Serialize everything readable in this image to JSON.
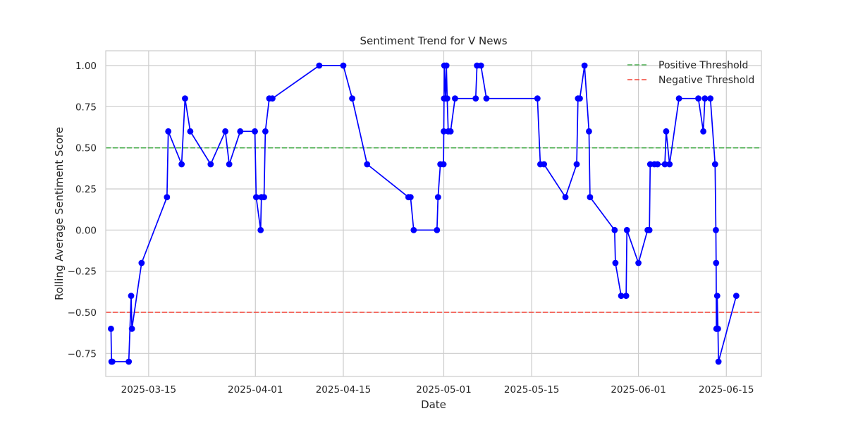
{
  "chart_data": {
    "type": "line",
    "title": "Sentiment Trend for V News",
    "xlabel": "Date",
    "ylabel": "Rolling Average Sentiment Score",
    "x_type": "date",
    "xlim": [
      "2025-03-08T04:00",
      "2025-06-20T14:00"
    ],
    "ylim": [
      -0.89,
      1.09
    ],
    "x_ticks": [
      "2025-03-15",
      "2025-04-01",
      "2025-04-15",
      "2025-05-01",
      "2025-05-15",
      "2025-06-01",
      "2025-06-15"
    ],
    "y_ticks": [
      1.0,
      0.75,
      0.5,
      0.25,
      0.0,
      -0.25,
      -0.5,
      -0.75
    ],
    "y_tick_labels": [
      "1.00",
      "0.75",
      "0.50",
      "0.25",
      "0.00",
      "−0.25",
      "−0.50",
      "−0.75"
    ],
    "grid": true,
    "legend_position": "top-right",
    "series": [
      {
        "color": "#0000ff",
        "marker": "circle",
        "points": [
          [
            "2025-03-09T00:00",
            -0.6
          ],
          [
            "2025-03-09T02:00",
            -0.8
          ],
          [
            "2025-03-09T05:00",
            -0.8
          ],
          [
            "2025-03-11T20:00",
            -0.8
          ],
          [
            "2025-03-12T05:00",
            -0.4
          ],
          [
            "2025-03-12T08:00",
            -0.6
          ],
          [
            "2025-03-13T21:00",
            -0.2
          ],
          [
            "2025-03-17T22:00",
            0.2
          ],
          [
            "2025-03-18T03:00",
            0.6
          ],
          [
            "2025-03-20T06:00",
            0.4
          ],
          [
            "2025-03-20T19:00",
            0.8
          ],
          [
            "2025-03-21T15:00",
            0.6
          ],
          [
            "2025-03-24T21:00",
            0.4
          ],
          [
            "2025-03-27T05:00",
            0.6
          ],
          [
            "2025-03-27T20:00",
            0.4
          ],
          [
            "2025-03-29T14:00",
            0.6
          ],
          [
            "2025-03-31T22:00",
            0.6
          ],
          [
            "2025-04-01T03:00",
            0.2
          ],
          [
            "2025-04-01T20:00",
            0.0
          ],
          [
            "2025-04-01T23:00",
            0.2
          ],
          [
            "2025-04-02T09:00",
            0.2
          ],
          [
            "2025-04-02T14:00",
            0.6
          ],
          [
            "2025-04-03T05:00",
            0.8
          ],
          [
            "2025-04-03T17:00",
            0.8
          ],
          [
            "2025-04-11T04:00",
            1.0
          ],
          [
            "2025-04-15T00:00",
            1.0
          ],
          [
            "2025-04-16T10:00",
            0.8
          ],
          [
            "2025-04-18T19:00",
            0.4
          ],
          [
            "2025-04-25T09:00",
            0.2
          ],
          [
            "2025-04-25T17:00",
            0.2
          ],
          [
            "2025-04-26T05:00",
            0.0
          ],
          [
            "2025-04-29T22:00",
            0.0
          ],
          [
            "2025-04-30T02:00",
            0.2
          ],
          [
            "2025-04-30T11:00",
            0.4
          ],
          [
            "2025-04-30T23:00",
            0.4
          ],
          [
            "2025-05-01T00:00",
            0.6
          ],
          [
            "2025-05-01T01:00",
            0.8
          ],
          [
            "2025-05-01T02:00",
            1.0
          ],
          [
            "2025-05-01T07:00",
            0.8
          ],
          [
            "2025-05-01T10:00",
            1.0
          ],
          [
            "2025-05-01T13:00",
            0.8
          ],
          [
            "2025-05-01T17:00",
            0.6
          ],
          [
            "2025-05-02T02:00",
            0.6
          ],
          [
            "2025-05-02T19:00",
            0.8
          ],
          [
            "2025-05-06T02:00",
            0.8
          ],
          [
            "2025-05-06T07:00",
            1.0
          ],
          [
            "2025-05-06T22:00",
            1.0
          ],
          [
            "2025-05-07T19:00",
            0.8
          ],
          [
            "2025-05-15T22:00",
            0.8
          ],
          [
            "2025-05-16T09:00",
            0.4
          ],
          [
            "2025-05-16T23:00",
            0.4
          ],
          [
            "2025-05-20T09:00",
            0.2
          ],
          [
            "2025-05-22T04:00",
            0.4
          ],
          [
            "2025-05-22T09:00",
            0.8
          ],
          [
            "2025-05-22T16:00",
            0.8
          ],
          [
            "2025-05-23T10:00",
            1.0
          ],
          [
            "2025-05-24T03:00",
            0.6
          ],
          [
            "2025-05-24T07:00",
            0.2
          ],
          [
            "2025-05-28T05:00",
            0.0
          ],
          [
            "2025-05-28T08:00",
            -0.2
          ],
          [
            "2025-05-29T06:00",
            -0.4
          ],
          [
            "2025-05-30T01:00",
            -0.4
          ],
          [
            "2025-05-30T04:00",
            0.0
          ],
          [
            "2025-06-01T00:00",
            -0.2
          ],
          [
            "2025-06-02T11:00",
            0.0
          ],
          [
            "2025-06-02T18:00",
            0.0
          ],
          [
            "2025-06-02T21:00",
            0.4
          ],
          [
            "2025-06-03T13:00",
            0.4
          ],
          [
            "2025-06-04T01:00",
            0.4
          ],
          [
            "2025-06-05T05:00",
            0.4
          ],
          [
            "2025-06-05T10:00",
            0.6
          ],
          [
            "2025-06-05T23:00",
            0.4
          ],
          [
            "2025-06-07T11:00",
            0.8
          ],
          [
            "2025-06-10T13:00",
            0.8
          ],
          [
            "2025-06-11T08:00",
            0.6
          ],
          [
            "2025-06-11T14:00",
            0.8
          ],
          [
            "2025-06-12T11:00",
            0.8
          ],
          [
            "2025-06-13T05:00",
            0.4
          ],
          [
            "2025-06-13T08:00",
            0.0
          ],
          [
            "2025-06-13T09:00",
            -0.2
          ],
          [
            "2025-06-13T10:00",
            -0.6
          ],
          [
            "2025-06-13T11:00",
            -0.6
          ],
          [
            "2025-06-13T13:00",
            -0.4
          ],
          [
            "2025-06-13T16:00",
            -0.6
          ],
          [
            "2025-06-13T18:00",
            -0.8
          ],
          [
            "2025-06-16T14:00",
            -0.4
          ]
        ]
      }
    ],
    "thresholds": [
      {
        "name": "Positive Threshold",
        "value": 0.5,
        "color": "#4caf50"
      },
      {
        "name": "Negative Threshold",
        "value": -0.5,
        "color": "#f44336"
      }
    ]
  }
}
